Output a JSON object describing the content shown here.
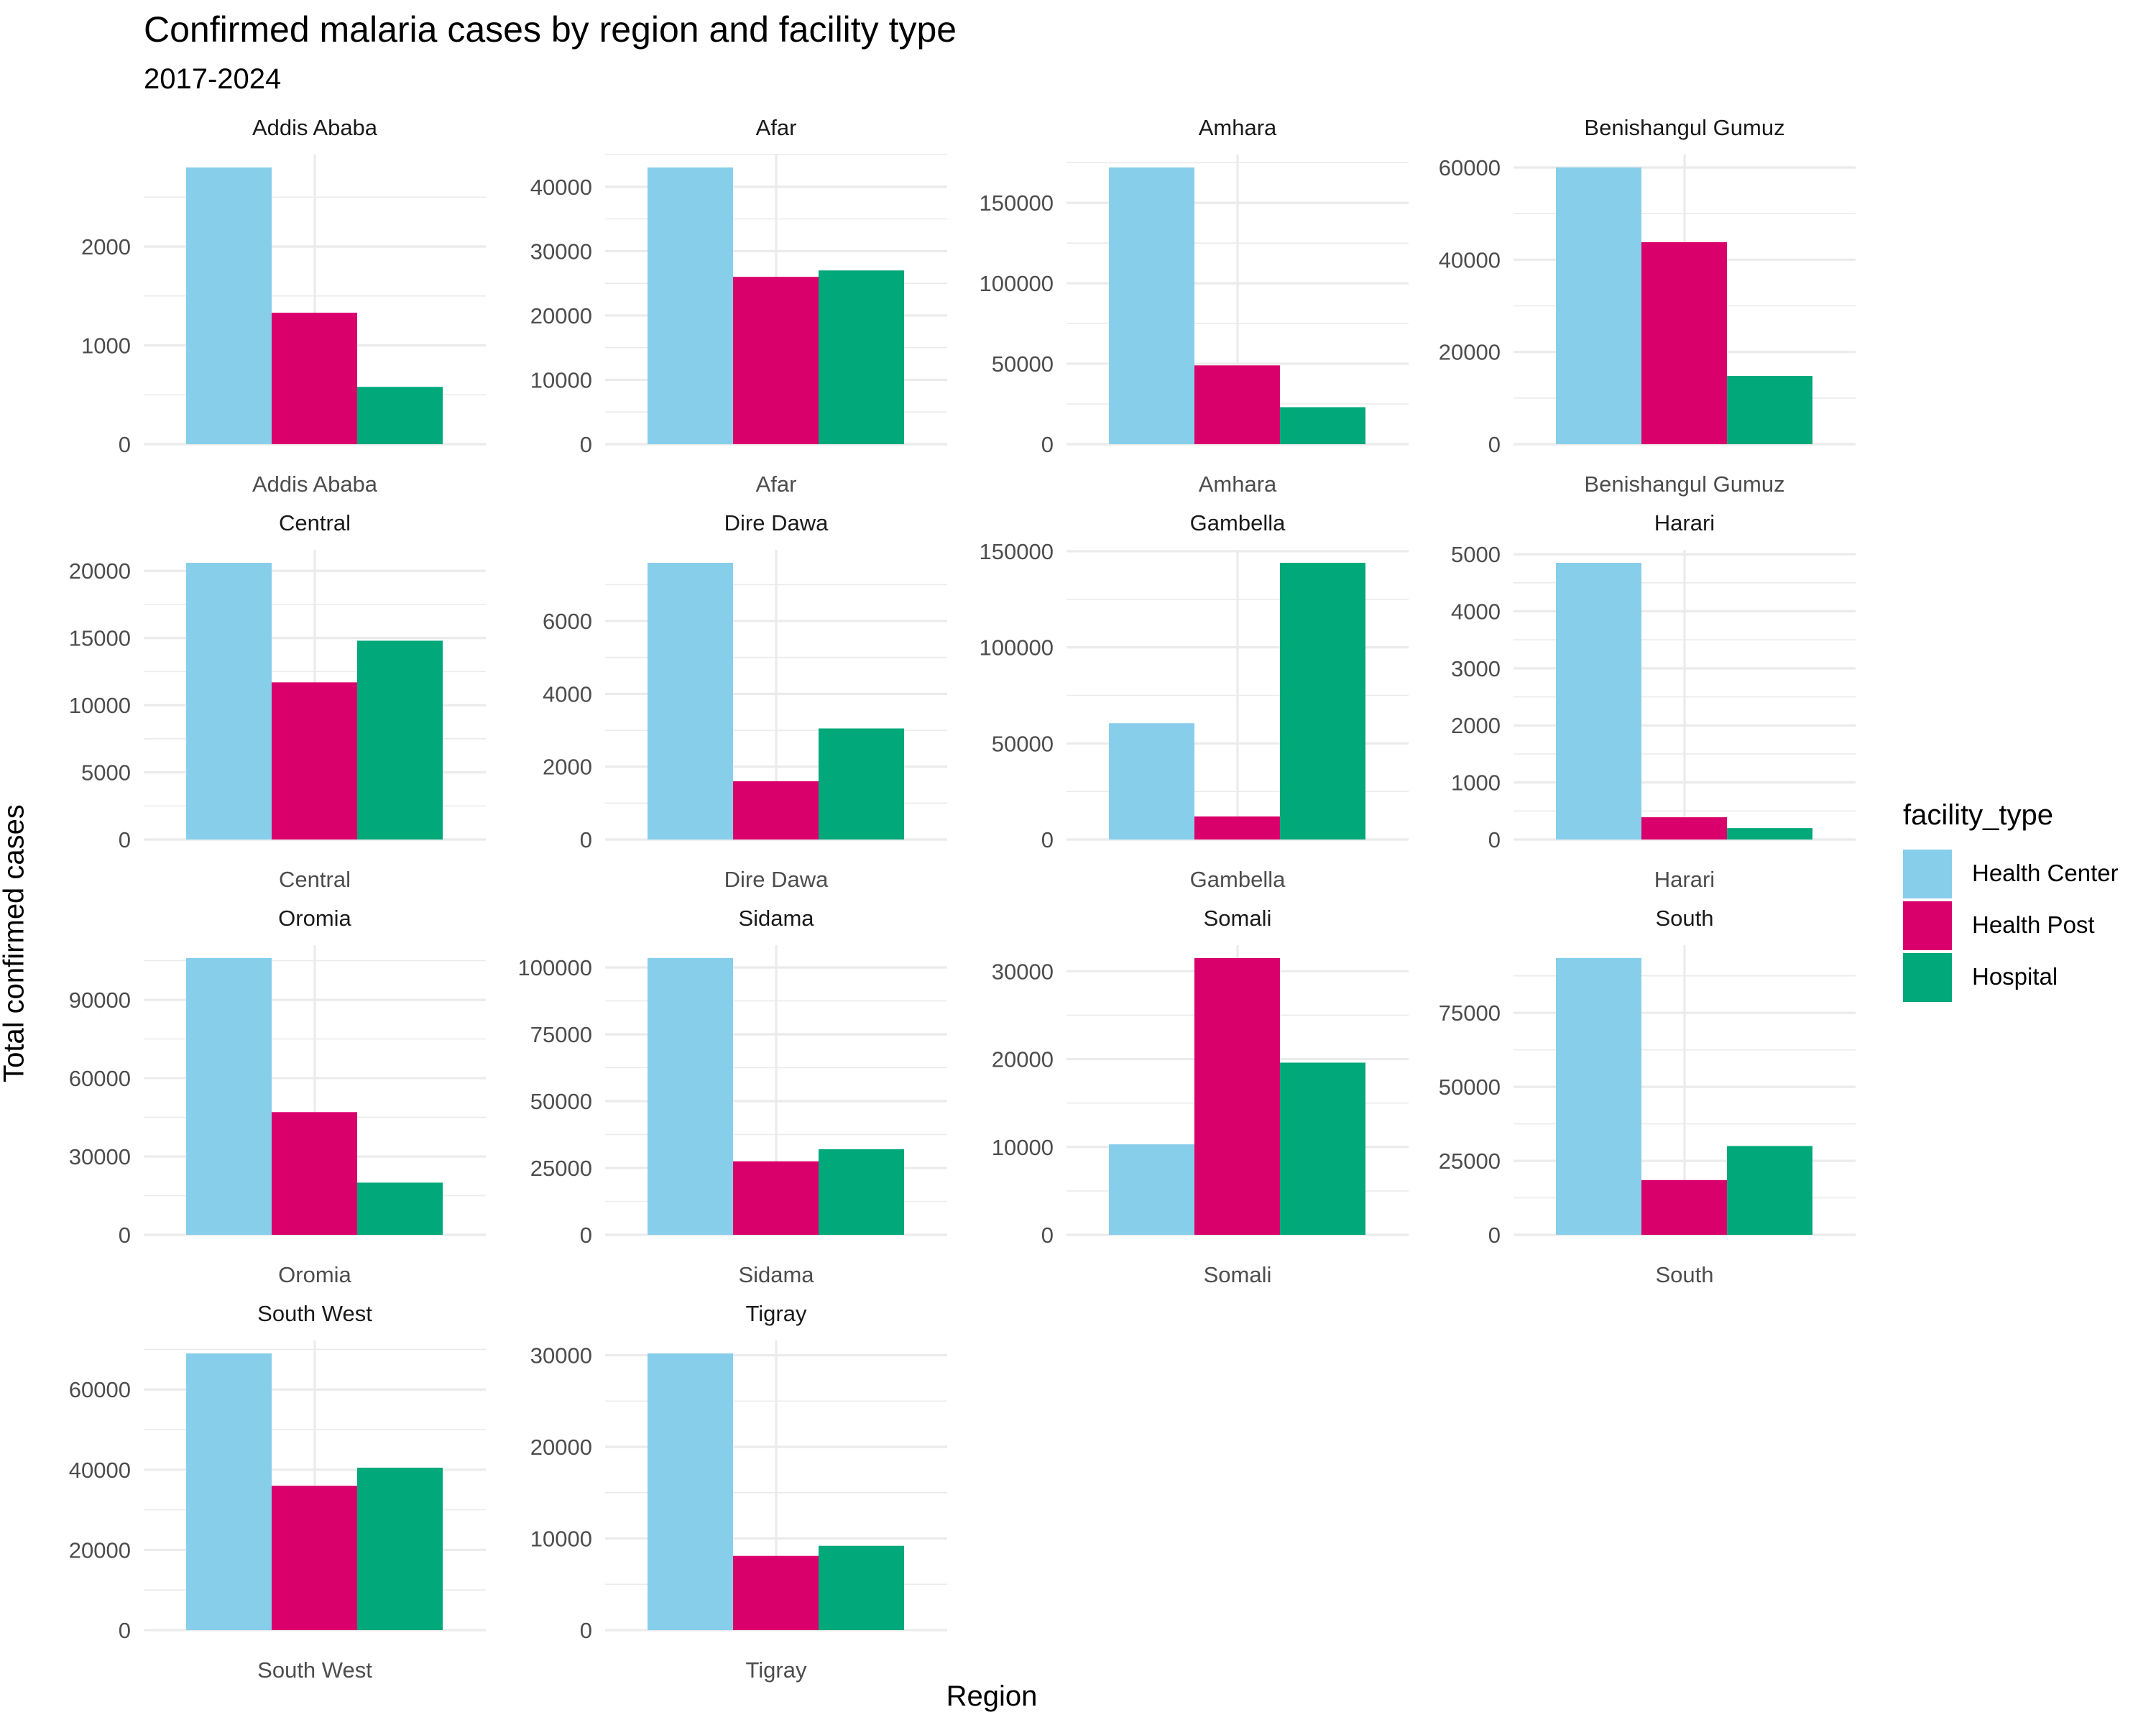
{
  "chart_data": {
    "type": "bar",
    "title": "Confirmed malaria cases by region and facility type",
    "subtitle": "2017-2024",
    "xlabel": "Region",
    "ylabel": "Total confirmed cases",
    "legend": {
      "title": "facility_type",
      "placement": "right",
      "entries": [
        "Health Center",
        "Health Post",
        "Hospital"
      ]
    },
    "colors": {
      "Health Center": "#87CEEB",
      "Health Post": "#D9006C",
      "Hospital": "#00A87A"
    },
    "grid": true,
    "facets": [
      {
        "region": "Addis Ababa",
        "ylim": [
          0,
          2800
        ],
        "yticks": [
          "0",
          "1000",
          "2000"
        ],
        "tick_values": [
          0,
          1000,
          2000
        ],
        "values": {
          "Health Center": 2800,
          "Health Post": 1330,
          "Hospital": 580
        }
      },
      {
        "region": "Afar",
        "ylim": [
          0,
          43000
        ],
        "yticks": [
          "0",
          "10000",
          "20000",
          "30000",
          "40000"
        ],
        "tick_values": [
          0,
          10000,
          20000,
          30000,
          40000
        ],
        "values": {
          "Health Center": 43000,
          "Health Post": 26000,
          "Hospital": 27000
        }
      },
      {
        "region": "Amhara",
        "ylim": [
          0,
          172000
        ],
        "yticks": [
          "0",
          "50000",
          "100000",
          "150000"
        ],
        "tick_values": [
          0,
          50000,
          100000,
          150000
        ],
        "values": {
          "Health Center": 172000,
          "Health Post": 49000,
          "Hospital": 23000
        }
      },
      {
        "region": "Benishangul Gumuz",
        "ylim": [
          0,
          60000
        ],
        "yticks": [
          "0",
          "20000",
          "40000",
          "60000"
        ],
        "tick_values": [
          0,
          20000,
          40000,
          60000
        ],
        "values": {
          "Health Center": 60000,
          "Health Post": 43800,
          "Hospital": 14800
        }
      },
      {
        "region": "Central",
        "ylim": [
          0,
          20600
        ],
        "yticks": [
          "0",
          "5000",
          "10000",
          "15000",
          "20000"
        ],
        "tick_values": [
          0,
          5000,
          10000,
          15000,
          20000
        ],
        "values": {
          "Health Center": 20600,
          "Health Post": 11700,
          "Hospital": 14800
        }
      },
      {
        "region": "Dire Dawa",
        "ylim": [
          0,
          7600
        ],
        "yticks": [
          "0",
          "2000",
          "4000",
          "6000"
        ],
        "tick_values": [
          0,
          2000,
          4000,
          6000
        ],
        "values": {
          "Health Center": 7600,
          "Health Post": 1600,
          "Hospital": 3050
        }
      },
      {
        "region": "Gambella",
        "ylim": [
          0,
          144000
        ],
        "yticks": [
          "0",
          "50000",
          "100000",
          "150000"
        ],
        "tick_values": [
          0,
          50000,
          100000,
          150000
        ],
        "values": {
          "Health Center": 60500,
          "Health Post": 12000,
          "Hospital": 144000
        }
      },
      {
        "region": "Harari",
        "ylim": [
          0,
          4850
        ],
        "yticks": [
          "0",
          "1000",
          "2000",
          "3000",
          "4000",
          "5000"
        ],
        "tick_values": [
          0,
          1000,
          2000,
          3000,
          4000,
          5000
        ],
        "values": {
          "Health Center": 4850,
          "Health Post": 390,
          "Hospital": 200
        }
      },
      {
        "region": "Oromia",
        "ylim": [
          0,
          106000
        ],
        "yticks": [
          "0",
          "30000",
          "60000",
          "90000"
        ],
        "tick_values": [
          0,
          30000,
          60000,
          90000
        ],
        "values": {
          "Health Center": 106000,
          "Health Post": 47000,
          "Hospital": 20000
        }
      },
      {
        "region": "Sidama",
        "ylim": [
          0,
          103500
        ],
        "yticks": [
          "0",
          "25000",
          "50000",
          "75000",
          "100000"
        ],
        "tick_values": [
          0,
          25000,
          50000,
          75000,
          100000
        ],
        "values": {
          "Health Center": 103500,
          "Health Post": 27500,
          "Hospital": 32000
        }
      },
      {
        "region": "Somali",
        "ylim": [
          0,
          31500
        ],
        "yticks": [
          "0",
          "10000",
          "20000",
          "30000"
        ],
        "tick_values": [
          0,
          10000,
          20000,
          30000
        ],
        "values": {
          "Health Center": 10300,
          "Health Post": 31500,
          "Hospital": 19600
        }
      },
      {
        "region": "South",
        "ylim": [
          0,
          93500
        ],
        "yticks": [
          "0",
          "25000",
          "50000",
          "75000"
        ],
        "tick_values": [
          0,
          25000,
          50000,
          75000
        ],
        "values": {
          "Health Center": 93500,
          "Health Post": 18500,
          "Hospital": 30000
        }
      },
      {
        "region": "South West",
        "ylim": [
          0,
          69000
        ],
        "yticks": [
          "0",
          "20000",
          "40000",
          "60000"
        ],
        "tick_values": [
          0,
          20000,
          40000,
          60000
        ],
        "values": {
          "Health Center": 69000,
          "Health Post": 36000,
          "Hospital": 40500
        }
      },
      {
        "region": "Tigray",
        "ylim": [
          0,
          30200
        ],
        "yticks": [
          "0",
          "10000",
          "20000",
          "30000"
        ],
        "tick_values": [
          0,
          10000,
          20000,
          30000
        ],
        "values": {
          "Health Center": 30200,
          "Health Post": 8100,
          "Hospital": 9200
        }
      }
    ]
  }
}
